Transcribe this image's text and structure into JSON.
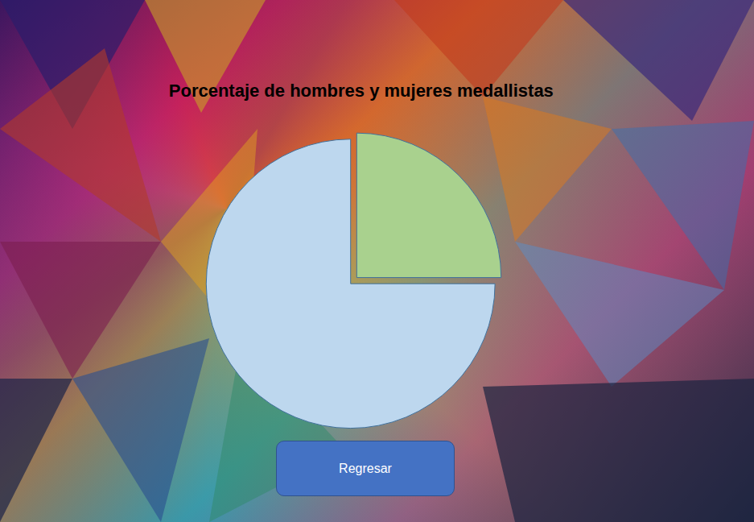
{
  "chart_data": {
    "type": "pie",
    "title": "Porcentaje de hombres y mujeres medallistas",
    "values": [
      25,
      75
    ],
    "colors": [
      "#a9d18e",
      "#bdd7ee"
    ],
    "data_labels": false
  },
  "buttons": [
    "Regresar"
  ]
}
